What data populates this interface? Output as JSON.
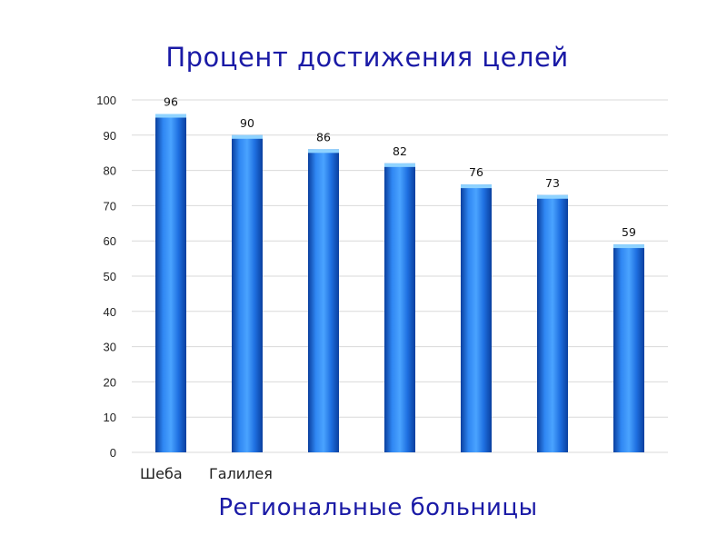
{
  "chart_data": {
    "type": "bar",
    "title": "Процент достижения целей",
    "xlabel": "Региональные больницы",
    "ylabel": "",
    "categories": [
      "Шеба",
      "Галилея",
      "",
      "",
      "",
      "",
      ""
    ],
    "values": [
      96,
      90,
      86,
      82,
      76,
      73,
      59
    ],
    "data_labels": [
      "96",
      "90",
      "86",
      "82",
      "76",
      "73",
      "59"
    ],
    "ylim": [
      0,
      100
    ],
    "yticks": [
      0,
      10,
      20,
      30,
      40,
      50,
      60,
      70,
      80,
      90,
      100
    ],
    "grid": true,
    "legend": "none",
    "colors": {
      "bar": "#1e6fe0",
      "bar_highlight": "#4aa3ff",
      "bar_shadow": "#0a3f9e",
      "bar_cap": "#8fd3ff",
      "title": "#1a1aa6"
    }
  }
}
